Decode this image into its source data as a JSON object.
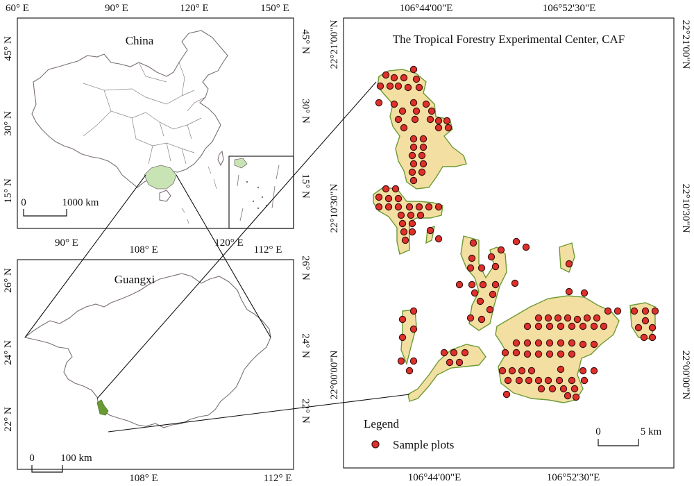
{
  "china_panel": {
    "title": "China",
    "top_ticks": [
      "60° E",
      "90° E",
      "120° E",
      "150° E"
    ],
    "bottom_ticks": [
      "90° E",
      "120° E"
    ],
    "left_ticks": [
      "45° N",
      "30° N",
      "15° N"
    ],
    "right_ticks": [
      "45° N",
      "30° N",
      "15° N"
    ],
    "scale_labels": [
      "0",
      "1000 km"
    ],
    "colors": {
      "highlight": "#c9e4b4",
      "border": "#7a6f73"
    }
  },
  "guangxi_panel": {
    "title": "Guangxi",
    "top_ticks": [
      "108° E",
      "112° E"
    ],
    "bottom_ticks": [
      "108° E",
      "112° E"
    ],
    "left_ticks": [
      "26° N",
      "24° N",
      "22° N"
    ],
    "right_ticks": [
      "26° N",
      "24° N",
      "22° N"
    ],
    "scale_labels": [
      "0",
      "100 km"
    ],
    "colors": {
      "study_area": "#6b9a35"
    }
  },
  "center_panel": {
    "title": "The Tropical Forestry Experimental Center, CAF",
    "top_ticks": [
      "106°44'00\"E",
      "106°52'30\"E"
    ],
    "bottom_ticks": [
      "106°44'00\"E",
      "106°52'30\"E"
    ],
    "left_ticks": [
      "22°21'00\"N",
      "22°10'30\"N",
      "22°00'00\"N"
    ],
    "right_ticks": [
      "22°21'00\"N",
      "22°10'30\"N",
      "22°00'00\"N"
    ],
    "scale_labels": [
      "0",
      "5 km"
    ],
    "legend": {
      "title": "Legend",
      "item_label": "Sample plots"
    },
    "colors": {
      "forest_edge": "#6b9a35",
      "forest_fill": "#f3dfa1",
      "plot": "#e0302a"
    }
  }
}
